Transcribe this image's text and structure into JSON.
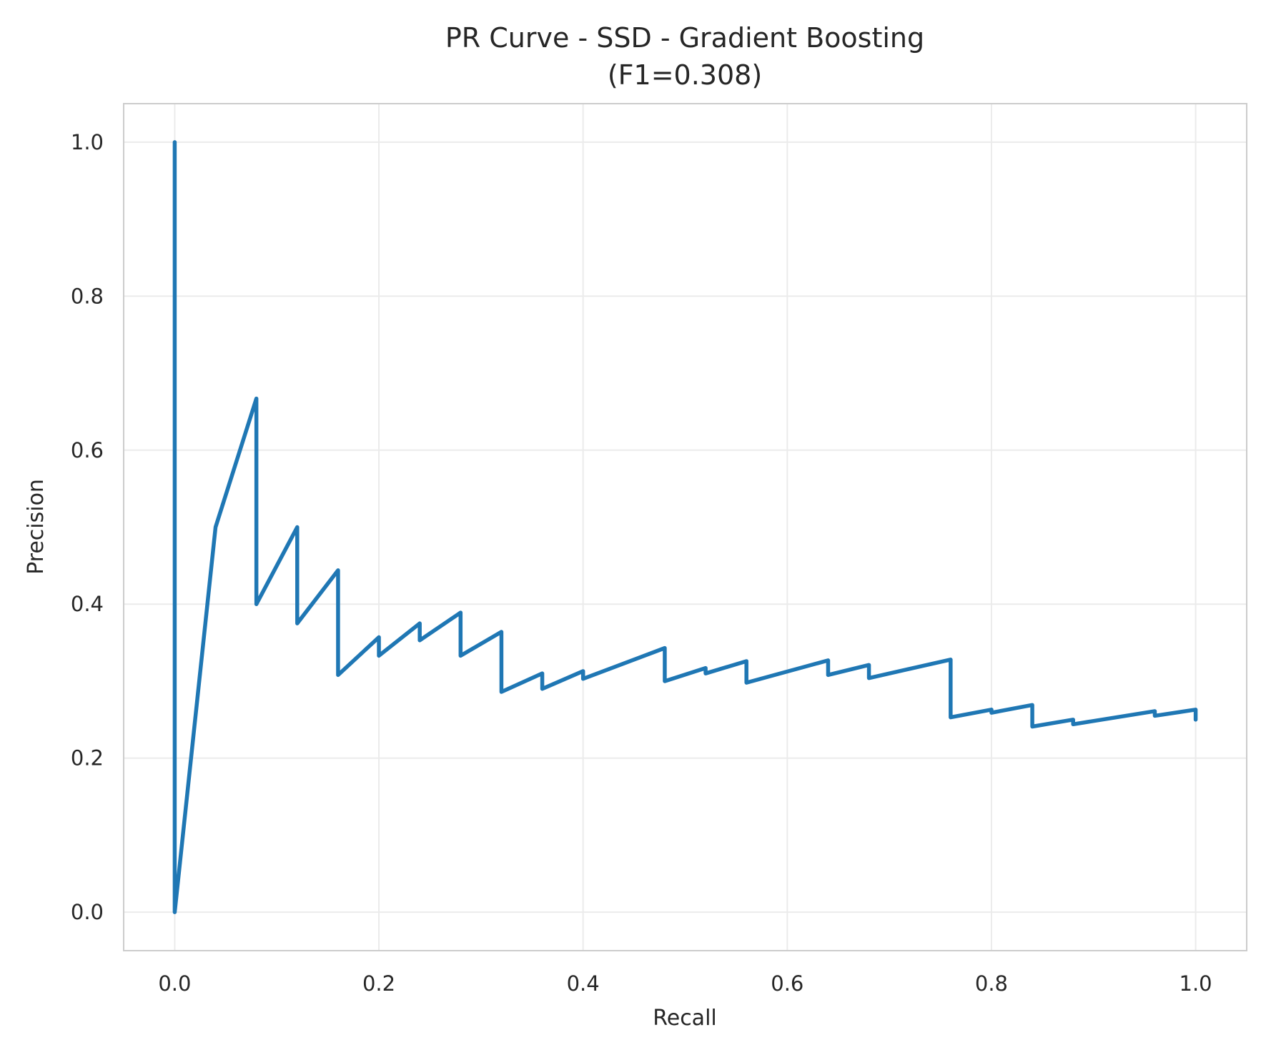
{
  "chart_data": {
    "type": "line",
    "title": "PR Curve - SSD - Gradient Boosting",
    "subtitle": "(F1=0.308)",
    "xlabel": "Recall",
    "ylabel": "Precision",
    "xlim": [
      -0.05,
      1.05
    ],
    "ylim": [
      -0.05,
      1.05
    ],
    "xticks": [
      0.0,
      0.2,
      0.4,
      0.6,
      0.8,
      1.0
    ],
    "xtick_labels": [
      "0.0",
      "0.2",
      "0.4",
      "0.6",
      "0.8",
      "1.0"
    ],
    "yticks": [
      0.0,
      0.2,
      0.4,
      0.6,
      0.8,
      1.0
    ],
    "ytick_labels": [
      "0.0",
      "0.2",
      "0.4",
      "0.6",
      "0.8",
      "1.0"
    ],
    "grid": true,
    "legend": "none",
    "colors": {
      "line": "#1f77b4",
      "grid": "#ebebeb",
      "frame": "#cccccc",
      "text": "#262626"
    },
    "series": [
      {
        "x": [
          0.0,
          0.0,
          0.0,
          0.04,
          0.08,
          0.08,
          0.12,
          0.12,
          0.16,
          0.16,
          0.2,
          0.2,
          0.24,
          0.24,
          0.28,
          0.28,
          0.32,
          0.32,
          0.36,
          0.36,
          0.4,
          0.4,
          0.48,
          0.48,
          0.52,
          0.52,
          0.56,
          0.56,
          0.64,
          0.64,
          0.68,
          0.68,
          0.76,
          0.76,
          0.8,
          0.8,
          0.84,
          0.84,
          0.88,
          0.88,
          0.96,
          0.96,
          1.0,
          1.0
        ],
        "y": [
          1.0,
          0.0,
          0.0,
          0.5,
          0.667,
          0.4,
          0.5,
          0.375,
          0.444,
          0.308,
          0.357,
          0.333,
          0.375,
          0.353,
          0.389,
          0.333,
          0.364,
          0.286,
          0.31,
          0.29,
          0.313,
          0.303,
          0.343,
          0.3,
          0.317,
          0.31,
          0.326,
          0.298,
          0.327,
          0.308,
          0.321,
          0.304,
          0.328,
          0.253,
          0.263,
          0.259,
          0.269,
          0.241,
          0.25,
          0.244,
          0.261,
          0.255,
          0.263,
          0.25
        ]
      }
    ]
  }
}
